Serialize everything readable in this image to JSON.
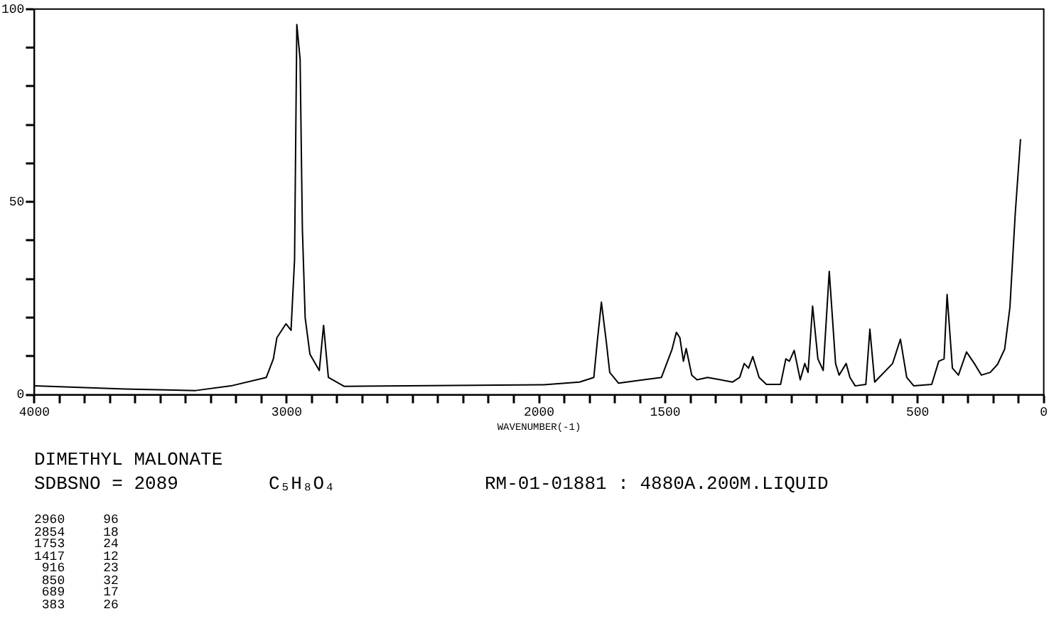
{
  "chart_data": {
    "type": "line",
    "title": "DIMETHYL MALONATE",
    "xlabel": "WAVENUMBER(-1)",
    "x": [
      4000,
      3641,
      3361,
      3221,
      3081,
      3053,
      3039,
      3003,
      2983,
      2969,
      2960,
      2947,
      2938,
      2927,
      2908,
      2871,
      2854,
      2835,
      2773,
      2521,
      1981,
      1840,
      1783,
      1769,
      1753,
      1734,
      1720,
      1685,
      1586,
      1515,
      1473,
      1456,
      1442,
      1428,
      1417,
      1395,
      1374,
      1332,
      1233,
      1205,
      1187,
      1170,
      1153,
      1128,
      1099,
      1043,
      1022,
      1008,
      989,
      965,
      947,
      934,
      916,
      895,
      874,
      850,
      825,
      811,
      783,
      768,
      747,
      705,
      689,
      670,
      599,
      568,
      543,
      515,
      444,
      416,
      395,
      383,
      362,
      338,
      306,
      275,
      247,
      212,
      183,
      155,
      134,
      113,
      92
    ],
    "series": [
      {
        "color": "#000000",
        "values": [
          2.3,
          1.5,
          1.1,
          2.3,
          4.5,
          9.3,
          14.8,
          18.4,
          16.7,
          35,
          96,
          87,
          43,
          20,
          10.5,
          6.3,
          18,
          4.5,
          2.2,
          2.3,
          2.6,
          3.3,
          4.5,
          14,
          24,
          14,
          5.8,
          3,
          3.9,
          4.5,
          11.8,
          16.2,
          14.8,
          8.7,
          12,
          5.1,
          3.9,
          4.5,
          3.3,
          4.5,
          8.1,
          6.9,
          9.9,
          4.5,
          2.7,
          2.7,
          9.3,
          8.7,
          11.5,
          3.9,
          8.1,
          5.8,
          23,
          9.3,
          6.3,
          32,
          8.1,
          5.1,
          8.1,
          4.5,
          2.3,
          2.7,
          17,
          3.3,
          8.1,
          14.4,
          4.5,
          2.3,
          2.7,
          8.7,
          9.3,
          26,
          6.9,
          5.1,
          11.1,
          8.1,
          5.1,
          5.8,
          7.9,
          11.8,
          22.7,
          46.9,
          66.3
        ]
      }
    ],
    "xlim": [
      4000,
      0
    ],
    "xticks": [
      4000,
      {
        "value": 3900,
        "label": null
      },
      {
        "value": 3800,
        "label": null
      },
      {
        "value": 3700,
        "label": null
      },
      {
        "value": 3600,
        "label": null
      },
      {
        "value": 3500,
        "label": null
      },
      {
        "value": 3400,
        "label": null
      },
      {
        "value": 3300,
        "label": null
      },
      {
        "value": 3200,
        "label": null
      },
      {
        "value": 3100,
        "label": null
      },
      3000,
      {
        "value": 2900,
        "label": null
      },
      {
        "value": 2800,
        "label": null
      },
      {
        "value": 2700,
        "label": null
      },
      {
        "value": 2600,
        "label": null
      },
      {
        "value": 2500,
        "label": null
      },
      {
        "value": 2400,
        "label": null
      },
      {
        "value": 2300,
        "label": null
      },
      {
        "value": 2200,
        "label": null
      },
      {
        "value": 2100,
        "label": null
      },
      2000,
      {
        "value": 1900,
        "label": null
      },
      {
        "value": 1800,
        "label": null
      },
      {
        "value": 1700,
        "label": null
      },
      {
        "value": 1600,
        "label": null
      },
      1500,
      {
        "value": 1400,
        "label": null
      },
      {
        "value": 1300,
        "label": null
      },
      {
        "value": 1200,
        "label": null
      },
      {
        "value": 1100,
        "label": null
      },
      {
        "value": 1000,
        "label": null
      },
      {
        "value": 900,
        "label": null
      },
      {
        "value": 800,
        "label": null
      },
      {
        "value": 700,
        "label": null
      },
      {
        "value": 600,
        "label": null
      },
      500,
      {
        "value": 400,
        "label": null
      },
      {
        "value": 300,
        "label": null
      },
      {
        "value": 200,
        "label": null
      },
      {
        "value": 100,
        "label": null
      },
      0
    ],
    "ylim": [
      0,
      100
    ],
    "yticks": [
      0,
      {
        "value": 10,
        "label": null
      },
      {
        "value": 20,
        "label": null
      },
      {
        "value": 30,
        "label": null
      },
      {
        "value": 40,
        "label": null
      },
      50,
      {
        "value": 60,
        "label": null
      },
      {
        "value": 70,
        "label": null
      },
      {
        "value": 80,
        "label": null
      },
      {
        "value": 90,
        "label": null
      },
      100
    ],
    "legend": false,
    "annotations": [
      "SDBSNO = 2089",
      "C₅H₈O₄",
      "RM-01-01881 : 4880A.200M.LIQUID",
      "2960     96",
      "2854     18",
      "1753     24",
      "1417     12",
      " 916     23",
      " 850     32",
      " 689     17",
      " 383     26"
    ]
  }
}
